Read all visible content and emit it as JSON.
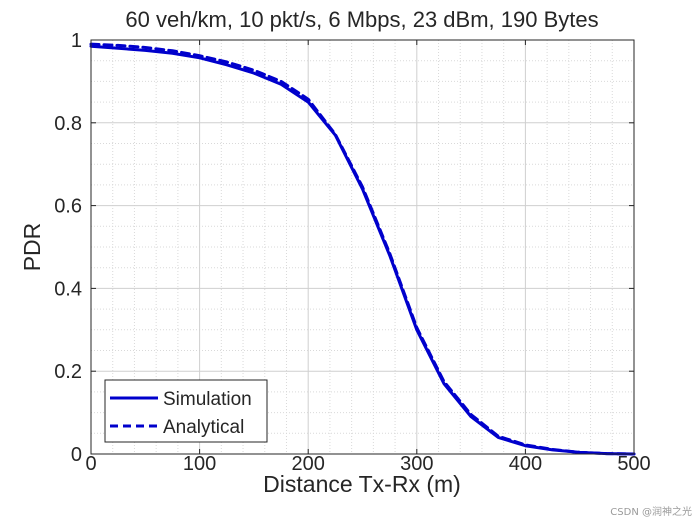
{
  "chart_data": {
    "type": "line",
    "title": "60 veh/km, 10 pkt/s, 6 Mbps, 23 dBm, 190 Bytes",
    "xlabel": "Distance Tx-Rx (m)",
    "ylabel": "PDR",
    "xlim": [
      0,
      500
    ],
    "ylim": [
      0,
      1
    ],
    "x_ticks": [
      0,
      100,
      200,
      300,
      400,
      500
    ],
    "y_ticks": [
      0,
      0.2,
      0.4,
      0.6,
      0.8,
      1
    ],
    "x_tick_labels": [
      "0",
      "100",
      "200",
      "300",
      "400",
      "500"
    ],
    "y_tick_labels": [
      "0",
      "0.2",
      "0.4",
      "0.6",
      "0.8",
      "1"
    ],
    "grid": true,
    "minor_grid": true,
    "legend_position": "bottom-left",
    "colors": {
      "series": "#0000cc",
      "grid": "#d9d9d9",
      "axis": "#262626"
    },
    "series": [
      {
        "name": "Simulation",
        "line_style": "solid",
        "x": [
          0,
          25,
          50,
          75,
          100,
          125,
          150,
          175,
          200,
          225,
          250,
          275,
          300,
          325,
          350,
          375,
          400,
          425,
          450,
          475,
          500
        ],
        "y": [
          0.985,
          0.98,
          0.975,
          0.968,
          0.957,
          0.94,
          0.92,
          0.893,
          0.85,
          0.77,
          0.64,
          0.48,
          0.3,
          0.17,
          0.09,
          0.04,
          0.02,
          0.01,
          0.004,
          0.001,
          0.0
        ]
      },
      {
        "name": "Analytical",
        "line_style": "dashed",
        "x": [
          0,
          25,
          50,
          75,
          100,
          125,
          150,
          175,
          200,
          225,
          250,
          275,
          300,
          325,
          350,
          375,
          400,
          425,
          450,
          475,
          500
        ],
        "y": [
          0.99,
          0.987,
          0.982,
          0.974,
          0.962,
          0.947,
          0.927,
          0.9,
          0.857,
          0.772,
          0.645,
          0.485,
          0.305,
          0.175,
          0.095,
          0.043,
          0.022,
          0.011,
          0.004,
          0.001,
          0.0
        ]
      }
    ]
  },
  "watermark": "CSDN @润神之光"
}
